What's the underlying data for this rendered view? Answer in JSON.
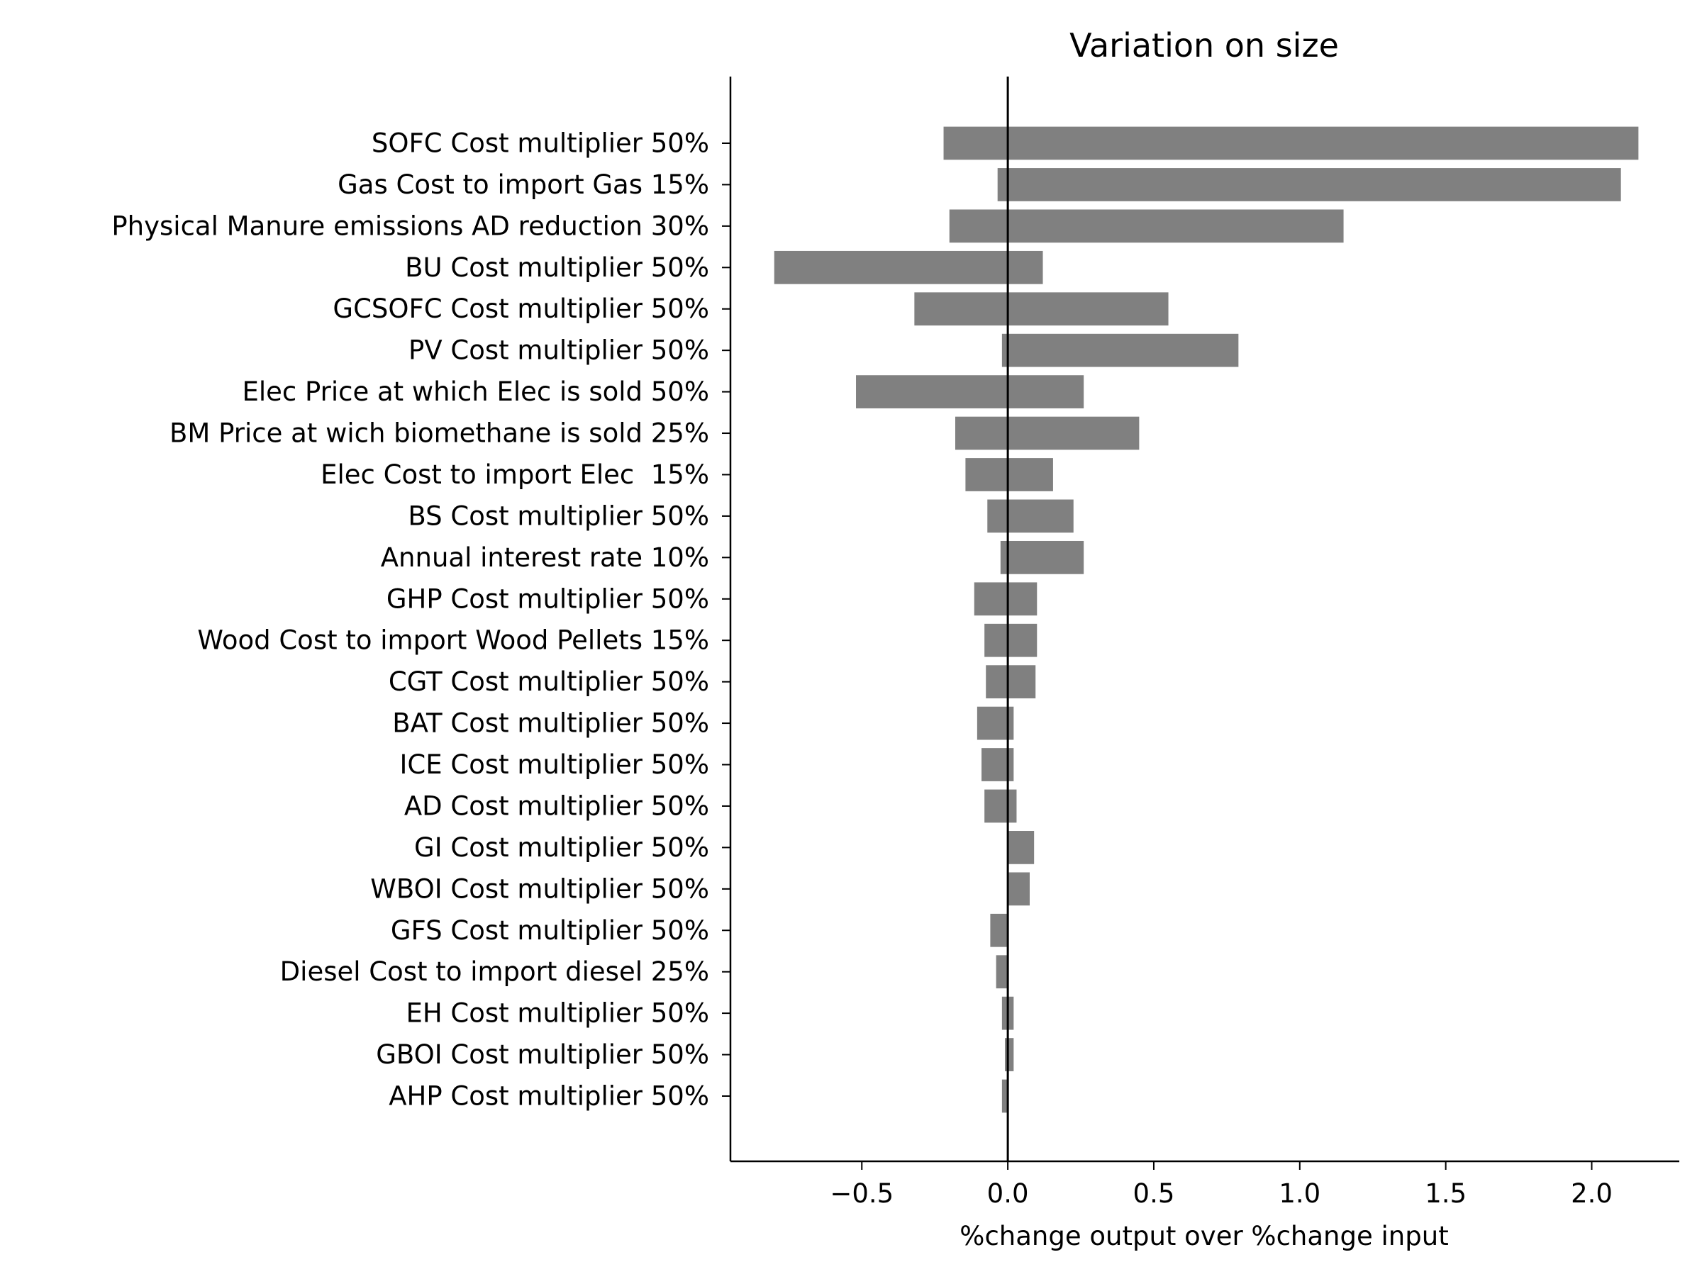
{
  "chart_data": {
    "type": "bar",
    "orientation": "horizontal",
    "title": "Variation on size",
    "xlabel": "%change output over %change input",
    "ylabel": "",
    "xlim": [
      -0.95,
      2.3
    ],
    "xticks": [
      -0.5,
      0.0,
      0.5,
      1.0,
      1.5,
      2.0
    ],
    "xtick_labels": [
      "−0.5",
      "0.0",
      "0.5",
      "1.0",
      "1.5",
      "2.0"
    ],
    "grid": false,
    "legend": "none",
    "bar_color": "#808080",
    "categories": [
      "SOFC Cost multiplier 50%",
      "Gas Cost to import Gas 15%",
      "Physical Manure emissions AD reduction 30%",
      "BU Cost multiplier 50%",
      "GCSOFC Cost multiplier 50%",
      "PV Cost multiplier 50%",
      "Elec Price at which Elec is sold 50%",
      "BM Price at wich biomethane is sold 25%",
      "Elec Cost to import Elec  15%",
      "BS Cost multiplier 50%",
      "Annual interest rate 10%",
      "GHP Cost multiplier 50%",
      "Wood Cost to import Wood Pellets 15%",
      "CGT Cost multiplier 50%",
      "BAT Cost multiplier 50%",
      "ICE Cost multiplier 50%",
      "AD Cost multiplier 50%",
      "GI Cost multiplier 50%",
      "WBOI Cost multiplier 50%",
      "GFS Cost multiplier 50%",
      "Diesel Cost to import diesel 25%",
      "EH Cost multiplier 50%",
      "GBOI Cost multiplier 50%",
      "AHP Cost multiplier 50%"
    ],
    "series": [
      {
        "values": [
          -0.22,
          -0.035,
          -0.2,
          -0.8,
          -0.32,
          -0.02,
          -0.52,
          -0.18,
          -0.145,
          -0.07,
          -0.025,
          -0.115,
          -0.08,
          -0.075,
          -0.105,
          -0.09,
          -0.08,
          0.0,
          0.0,
          -0.06,
          -0.04,
          -0.02,
          -0.01,
          -0.02
        ]
      },
      {
        "values": [
          2.16,
          2.1,
          1.15,
          0.12,
          0.55,
          0.79,
          0.26,
          0.45,
          0.155,
          0.225,
          0.26,
          0.1,
          0.1,
          0.095,
          0.02,
          0.02,
          0.03,
          0.09,
          0.075,
          0.0,
          0.0,
          0.02,
          0.02,
          0.0
        ]
      }
    ]
  }
}
